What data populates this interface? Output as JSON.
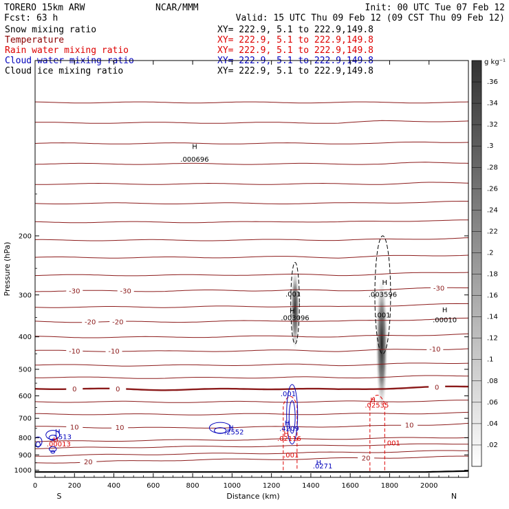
{
  "header": {
    "model": "TORERO   15km ARW",
    "org": "NCAR/MMM",
    "init": "Init: 00 UTC Tue 07 Feb 12",
    "fcst": "Fcst:    63 h",
    "valid": "Valid: 15 UTC Thu 09 Feb 12 (09 CST Thu 09 Feb 12)"
  },
  "legend": [
    {
      "name": "Snow mixing ratio",
      "color": "#000000",
      "xy": "XY= 222.9,  5.1 to 222.9,149.8"
    },
    {
      "name": "Temperature",
      "color": "#8b0000",
      "xy": "XY= 222.9,  5.1 to 222.9,149.8"
    },
    {
      "name": "Rain water mixing ratio",
      "color": "#dd0000",
      "xy": "XY= 222.9,  5.1 to 222.9,149.8"
    },
    {
      "name": "Cloud water mixing ratio",
      "color": "#0000bb",
      "xy": "XY= 222.9,  5.1 to 222.9,149.8"
    },
    {
      "name": "Cloud ice mixing ratio",
      "color": "#000000",
      "xy": "XY= 222.9,  5.1 to 222.9,149.8"
    }
  ],
  "chart_data": {
    "type": "cross-section",
    "xlabel": "Distance (km)",
    "ylabel": "Pressure (hPa)",
    "xlim": [
      0,
      2200
    ],
    "ylim": [
      1050,
      60
    ],
    "xticks": [
      0,
      200,
      400,
      600,
      800,
      1000,
      1200,
      1400,
      1600,
      1800,
      2000
    ],
    "yticks": [
      1000,
      900,
      800,
      700,
      600,
      500,
      400,
      300,
      200
    ],
    "x_end_labels": {
      "left": "S",
      "right": "N"
    },
    "colorbar": {
      "units": "g kg⁻¹",
      "ticks": [
        ".36",
        ".34",
        ".32",
        ".3",
        ".28",
        ".26",
        ".24",
        ".22",
        ".2",
        ".18",
        ".16",
        ".14",
        ".12",
        ".1",
        ".08",
        ".06",
        ".04",
        ".02"
      ],
      "values": [
        0.36,
        0.34,
        0.32,
        0.3,
        0.28,
        0.26,
        0.24,
        0.22,
        0.2,
        0.18,
        0.16,
        0.14,
        0.12,
        0.1,
        0.08,
        0.06,
        0.04,
        0.02
      ],
      "vmin": 0.0,
      "vmax": 0.38
    },
    "temperature_isotherms": [
      {
        "label": "20",
        "pressure": [
          950,
          946,
          940,
          934,
          930,
          928,
          926,
          922,
          918,
          914,
          910
        ],
        "thick": false,
        "labels_at": [
          {
            "x": 270,
            "text": "20"
          },
          {
            "x": 1680,
            "text": "20"
          }
        ]
      },
      {
        "label": "",
        "pressure": [
          905,
          902,
          898,
          895,
          893,
          890,
          888,
          885,
          882,
          878,
          874
        ],
        "thick": false,
        "labels_at": []
      },
      {
        "label": "",
        "pressure": [
          860,
          857,
          854,
          852,
          850,
          848,
          846,
          843,
          840,
          837,
          833
        ],
        "thick": false,
        "labels_at": []
      },
      {
        "label": "",
        "pressure": [
          822,
          819,
          816,
          814,
          812,
          810,
          808,
          806,
          803,
          800,
          797
        ],
        "thick": false,
        "labels_at": []
      },
      {
        "label": "10",
        "pressure": [
          742,
          744,
          746,
          748,
          746,
          744,
          742,
          740,
          738,
          732,
          725
        ],
        "thick": false,
        "labels_at": [
          {
            "x": 200,
            "text": "10"
          },
          {
            "x": 430,
            "text": "10"
          },
          {
            "x": 1900,
            "text": "10"
          }
        ]
      },
      {
        "label": "",
        "pressure": [
          680,
          680,
          681,
          682,
          681,
          680,
          680,
          679,
          678,
          676,
          674
        ],
        "thick": false,
        "labels_at": []
      },
      {
        "label": "",
        "pressure": [
          625,
          625,
          625,
          626,
          626,
          625,
          625,
          624,
          623,
          622,
          620
        ],
        "thick": false,
        "labels_at": []
      },
      {
        "label": "0",
        "pressure": [
          570,
          572,
          573,
          575,
          574,
          572,
          571,
          575,
          570,
          566,
          563
        ],
        "thick": true,
        "labels_at": [
          {
            "x": 200,
            "text": "0"
          },
          {
            "x": 420,
            "text": "0"
          },
          {
            "x": 2040,
            "text": "0"
          }
        ]
      },
      {
        "label": "",
        "pressure": [
          528,
          529,
          530,
          531,
          530,
          529,
          528,
          530,
          527,
          524,
          522
        ],
        "thick": false,
        "labels_at": []
      },
      {
        "label": "",
        "pressure": [
          485,
          486,
          487,
          487,
          486,
          485,
          484,
          486,
          483,
          480,
          478
        ],
        "thick": false,
        "labels_at": []
      },
      {
        "label": "-10",
        "pressure": [
          440,
          441,
          441,
          442,
          441,
          440,
          439,
          441,
          438,
          436,
          434
        ],
        "thick": false,
        "labels_at": [
          {
            "x": 200,
            "text": "-10"
          },
          {
            "x": 400,
            "text": "-10"
          },
          {
            "x": 2030,
            "text": "-10"
          }
        ]
      },
      {
        "label": "",
        "pressure": [
          400,
          401,
          401,
          401,
          400,
          399,
          398,
          400,
          397,
          395,
          393
        ],
        "thick": false,
        "labels_at": []
      },
      {
        "label": "-20",
        "pressure": [
          360,
          361,
          361,
          361,
          360,
          359,
          358,
          360,
          357,
          355,
          353
        ],
        "thick": false,
        "labels_at": [
          {
            "x": 280,
            "text": "-20"
          },
          {
            "x": 420,
            "text": "-20"
          }
        ]
      },
      {
        "label": "",
        "pressure": [
          326,
          326,
          326,
          326,
          325,
          325,
          324,
          326,
          323,
          321,
          319
        ],
        "thick": false,
        "labels_at": []
      },
      {
        "label": "-30",
        "pressure": [
          292,
          292,
          292,
          292,
          291,
          291,
          290,
          292,
          289,
          287,
          285
        ],
        "thick": false,
        "labels_at": [
          {
            "x": 200,
            "text": "-30"
          },
          {
            "x": 460,
            "text": "-30"
          },
          {
            "x": 2050,
            "text": "-30"
          }
        ]
      },
      {
        "label": "",
        "pressure": [
          262,
          262,
          262,
          262,
          262,
          261,
          261,
          262,
          260,
          258,
          256
        ],
        "thick": false,
        "labels_at": []
      },
      {
        "label": "",
        "pressure": [
          232,
          232,
          232,
          232,
          232,
          231,
          231,
          232,
          230,
          229,
          228
        ],
        "thick": false,
        "labels_at": []
      },
      {
        "label": "",
        "pressure": [
          206,
          206,
          206,
          206,
          206,
          206,
          205,
          206,
          205,
          204,
          203
        ],
        "thick": false,
        "labels_at": []
      },
      {
        "label": "",
        "pressure": [
          182,
          182,
          182,
          182,
          182,
          182,
          181,
          182,
          181,
          180,
          180
        ],
        "thick": false,
        "labels_at": []
      },
      {
        "label": "",
        "pressure": [
          160,
          160,
          160,
          160,
          160,
          160,
          160,
          160,
          159,
          159,
          158
        ],
        "thick": false,
        "labels_at": []
      },
      {
        "label": "",
        "pressure": [
          140,
          140,
          140,
          140,
          140,
          140,
          140,
          140,
          140,
          139,
          139
        ],
        "thick": false,
        "labels_at": []
      },
      {
        "label": "",
        "pressure": [
          122,
          122,
          122,
          122,
          122,
          122,
          122,
          122,
          122,
          121,
          121
        ],
        "thick": false,
        "labels_at": []
      },
      {
        "label": "",
        "pressure": [
          106,
          106,
          106,
          106,
          106,
          106,
          106,
          106,
          106,
          105,
          105
        ],
        "thick": false,
        "labels_at": []
      },
      {
        "label": "",
        "pressure": [
          92,
          92,
          92,
          92,
          92,
          92,
          92,
          92,
          91,
          91,
          91
        ],
        "thick": false,
        "labels_at": []
      },
      {
        "label": "",
        "pressure": [
          80,
          80,
          80,
          80,
          80,
          80,
          80,
          80,
          80,
          80,
          80
        ],
        "thick": false,
        "labels_at": []
      }
    ],
    "surface_pressure": [
      1012,
      1012,
      1012,
      1012,
      1012,
      1012,
      1012,
      1012,
      1012,
      1012,
      1005
    ],
    "snow_shading": [
      {
        "x": 1320,
        "p_center": 330,
        "p_half": 90,
        "x_half": 22,
        "peak": 0.16
      },
      {
        "x": 1760,
        "p_center": 420,
        "p_half": 180,
        "x_half": 30,
        "peak": 0.34
      }
    ],
    "cloud_ice_contours": [
      {
        "x": 1320,
        "p_top": 240,
        "p_bot": 420,
        "x_half": 22
      },
      {
        "x": 1765,
        "p_top": 200,
        "p_bot": 450,
        "x_half": 40
      }
    ],
    "rain_contours": [
      {
        "x": 1260,
        "x2": 1330,
        "p_top": 595,
        "p_bot": 1000
      },
      {
        "x": 1700,
        "x2": 1775,
        "p_top": 590,
        "p_bot": 1005
      }
    ],
    "cloud_water_contours": [
      {
        "x": 1305,
        "x_half": 28,
        "p_top": 555,
        "p_bot": 835
      },
      {
        "x": 940,
        "x_half": 55,
        "p_top": 720,
        "p_bot": 775
      },
      {
        "x": 90,
        "x_half": 35,
        "p_top": 760,
        "p_bot": 810
      },
      {
        "x": 15,
        "x_half": 20,
        "p_top": 795,
        "p_bot": 850
      },
      {
        "x": 90,
        "x_half": 18,
        "p_top": 850,
        "p_bot": 880
      }
    ],
    "annotations": [
      {
        "x": 810,
        "p": 110,
        "text": "H",
        "color": "#000000"
      },
      {
        "x": 810,
        "p": 120,
        "text": ".000696",
        "color": "#000000"
      },
      {
        "x": 1310,
        "p": 303,
        "text": ".001",
        "color": "#000000"
      },
      {
        "x": 1305,
        "p": 340,
        "text": "H",
        "color": "#000000"
      },
      {
        "x": 1320,
        "p": 357,
        "text": ".003096",
        "color": "#000000"
      },
      {
        "x": 1775,
        "p": 280,
        "text": "H",
        "color": "#000000"
      },
      {
        "x": 1765,
        "p": 304,
        "text": ".003596",
        "color": "#000000"
      },
      {
        "x": 1765,
        "p": 350,
        "text": ".001",
        "color": "#000000"
      },
      {
        "x": 2080,
        "p": 338,
        "text": "H",
        "color": "#000000"
      },
      {
        "x": 2080,
        "p": 362,
        "text": ".00010",
        "color": "#000000"
      },
      {
        "x": 1285,
        "p": 602,
        "text": ".001",
        "color": "#0000bb"
      },
      {
        "x": 1280,
        "p": 735,
        "text": "H",
        "color": "#0000bb"
      },
      {
        "x": 1290,
        "p": 764,
        "text": ".4209",
        "color": "#0000bb"
      },
      {
        "x": 1275,
        "p": 790,
        "text": "H",
        "color": "#dd0000"
      },
      {
        "x": 1290,
        "p": 818,
        "text": ".02116",
        "color": "#dd0000"
      },
      {
        "x": 1300,
        "p": 915,
        "text": ".001",
        "color": "#dd0000"
      },
      {
        "x": 1715,
        "p": 628,
        "text": "H",
        "color": "#dd0000"
      },
      {
        "x": 1735,
        "p": 650,
        "text": ".02535",
        "color": "#dd0000"
      },
      {
        "x": 1815,
        "p": 842,
        "text": ".001",
        "color": "#dd0000"
      },
      {
        "x": 995,
        "p": 760,
        "text": "H",
        "color": "#0000bb"
      },
      {
        "x": 1010,
        "p": 782,
        "text": ".2552",
        "color": "#0000bb"
      },
      {
        "x": 115,
        "p": 780,
        "text": "H",
        "color": "#0000bb"
      },
      {
        "x": 135,
        "p": 807,
        "text": ".1513",
        "color": "#0000bb"
      },
      {
        "x": 105,
        "p": 823,
        "text": "H",
        "color": "#dd0000"
      },
      {
        "x": 120,
        "p": 848,
        "text": ".00013",
        "color": "#dd0000"
      },
      {
        "x": 1440,
        "p": 965,
        "text": "H",
        "color": "#0000bb"
      },
      {
        "x": 1460,
        "p": 988,
        "text": ".0271",
        "color": "#0000bb"
      }
    ]
  }
}
